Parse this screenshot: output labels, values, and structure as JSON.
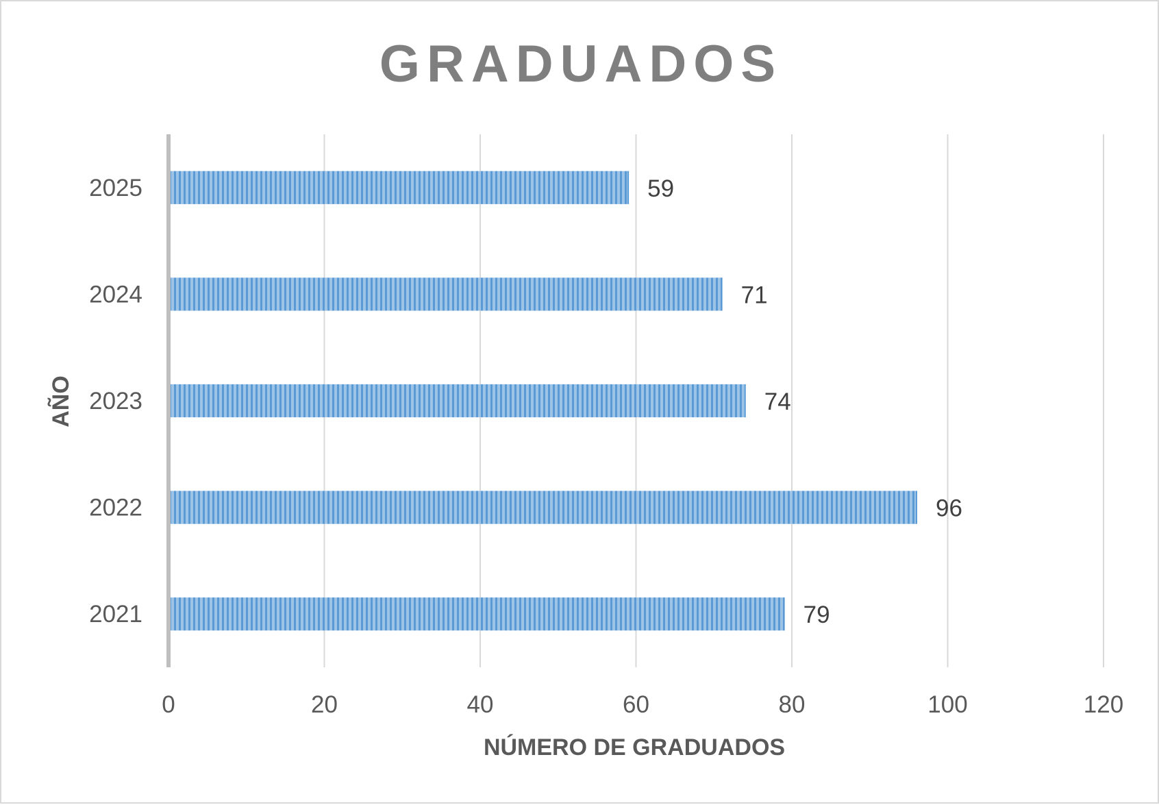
{
  "chart_data": {
    "type": "bar",
    "orientation": "horizontal",
    "title": "GRADUADOS",
    "xlabel": "NÚMERO DE GRADUADOS",
    "ylabel": "AÑO",
    "categories": [
      "2025",
      "2024",
      "2023",
      "2022",
      "2021"
    ],
    "values": [
      59,
      71,
      74,
      96,
      79
    ],
    "xlim": [
      0,
      120
    ],
    "xticks": [
      0,
      20,
      40,
      60,
      80,
      100,
      120
    ],
    "grid": true,
    "legend": "none",
    "data_labels": true,
    "colors": {
      "bar_fill": "#9dc3e6",
      "bar_stripe": "#5b9bd5",
      "grid": "#d9d9d9",
      "axis": "#bfbfbf"
    }
  }
}
